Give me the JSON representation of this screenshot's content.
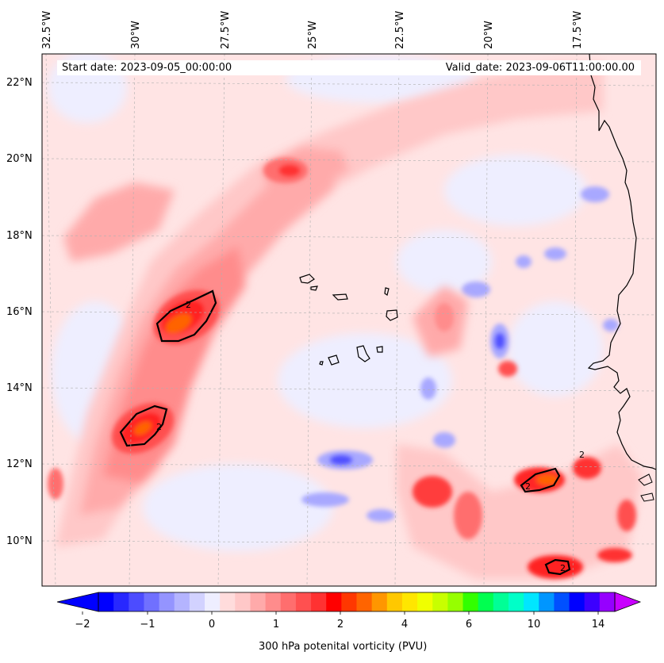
{
  "map": {
    "dates": {
      "start": "Start date: 2023-09-05_00:00:00",
      "valid": "Valid_date: 2023-09-06T11:00:00.00"
    },
    "longitude_labels": [
      "32.5°W",
      "30°W",
      "27.5°W",
      "25°W",
      "22.5°W",
      "20°W",
      "17.5°W"
    ],
    "latitude_labels": [
      "22°N",
      "20°N",
      "18°N",
      "16°N",
      "14°N",
      "12°N",
      "10°N"
    ],
    "contour_label": "2",
    "colorbar": {
      "title": "300 hPa potenital vorticity (PVU)",
      "ticks": [
        "−2",
        "−1",
        "0",
        "1",
        "2",
        "4",
        "6",
        "10",
        "14"
      ],
      "colors": [
        "#0000ff",
        "#2828ff",
        "#4c4cff",
        "#7070ff",
        "#9494ff",
        "#b4b4ff",
        "#d2d2ff",
        "#eeeeff",
        "#ffdcdc",
        "#ffc8c8",
        "#ffaaaa",
        "#ff8c8c",
        "#ff6e6e",
        "#ff5050",
        "#ff3232",
        "#ff0000",
        "#ff3700",
        "#ff6400",
        "#ff9600",
        "#ffc800",
        "#ffe600",
        "#f0ff00",
        "#c8ff00",
        "#96ff00",
        "#32ff00",
        "#00ff50",
        "#00ff96",
        "#00ffc8",
        "#00e6ff",
        "#0096ff",
        "#0050ff",
        "#0000ff",
        "#3c00ff",
        "#9600ff"
      ],
      "min_color": "#0000ff",
      "max_color": "#c800ff"
    }
  }
}
